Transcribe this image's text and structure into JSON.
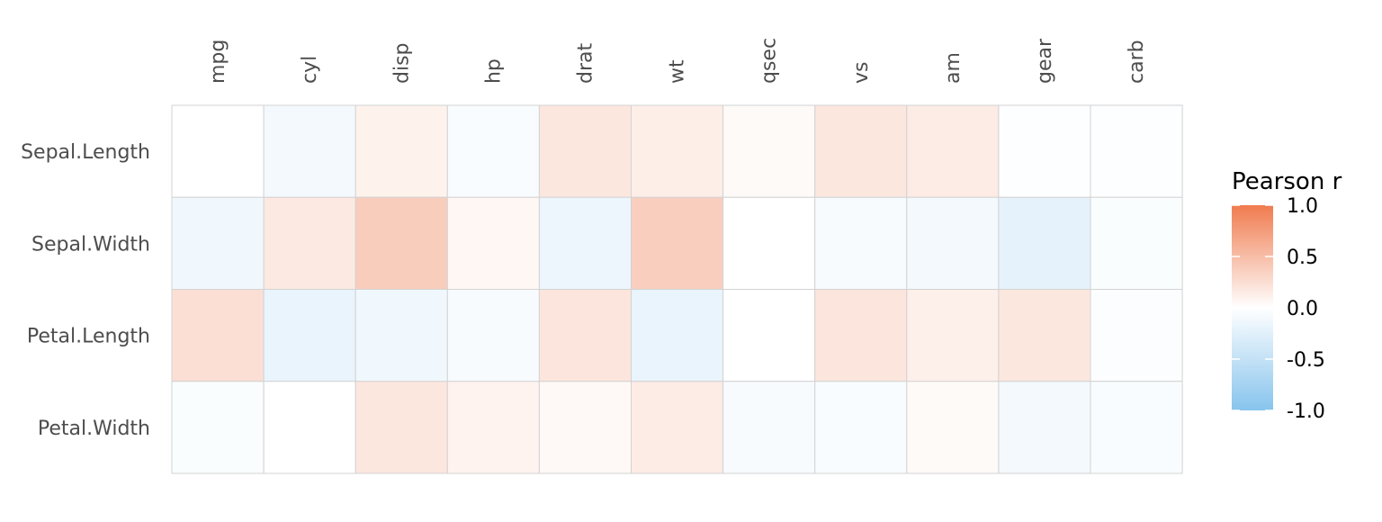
{
  "chart_data": {
    "type": "heatmap",
    "title": "",
    "xlabel": "",
    "ylabel": "",
    "x_categories": [
      "mpg",
      "cyl",
      "disp",
      "hp",
      "drat",
      "wt",
      "qsec",
      "vs",
      "am",
      "gear",
      "carb"
    ],
    "y_categories": [
      "Sepal.Length",
      "Sepal.Width",
      "Petal.Length",
      "Petal.Width"
    ],
    "values": [
      [
        0.0,
        -0.1,
        0.1,
        -0.05,
        0.18,
        0.13,
        0.04,
        0.18,
        0.15,
        -0.02,
        -0.02
      ],
      [
        -0.12,
        0.17,
        0.38,
        0.06,
        -0.15,
        0.37,
        0.0,
        -0.06,
        -0.1,
        -0.22,
        -0.04
      ],
      [
        0.24,
        -0.18,
        -0.12,
        -0.07,
        0.2,
        -0.18,
        0.0,
        0.2,
        0.12,
        0.18,
        -0.03
      ],
      [
        -0.04,
        0.0,
        0.18,
        0.09,
        0.05,
        0.15,
        -0.07,
        -0.05,
        0.04,
        -0.1,
        -0.05
      ]
    ],
    "legend": {
      "title": "Pearson r",
      "position": "right",
      "min": -1.0,
      "max": 1.0,
      "ticks": [
        1.0,
        0.5,
        0.0,
        -0.5,
        -1.0
      ],
      "tick_labels": [
        "1.0",
        "0.5",
        "0.0",
        "-0.5",
        "-1.0"
      ]
    },
    "colors": {
      "low": "#87c4ed",
      "mid": "#ffffff",
      "high": "#f07b4f",
      "cell_border": "#d3d3d3",
      "label_text": "#4d4d4d",
      "legend_text": "#000000"
    },
    "x_labels_position": "top",
    "x_labels_rotation": "vertical",
    "grid": false
  }
}
